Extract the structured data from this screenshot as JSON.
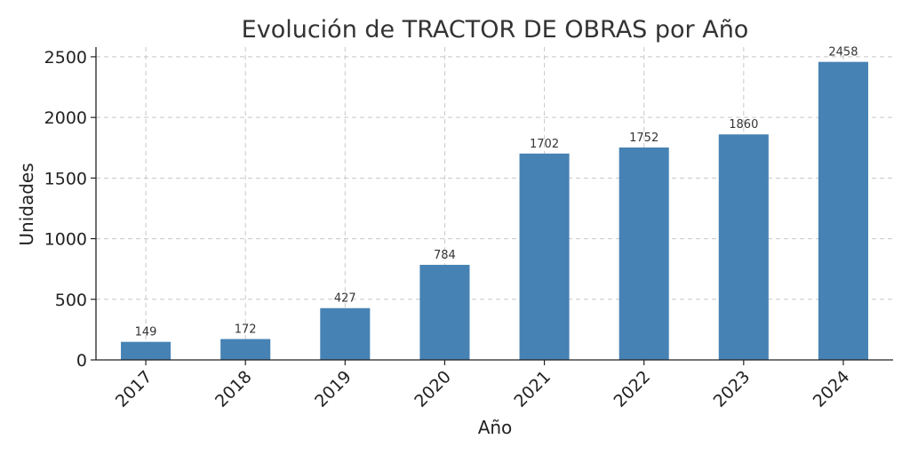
{
  "chart_data": {
    "type": "bar",
    "title": "Evolución de TRACTOR DE OBRAS por Año",
    "xlabel": "Año",
    "ylabel": "Unidades",
    "categories": [
      "2017",
      "2018",
      "2019",
      "2020",
      "2021",
      "2022",
      "2023",
      "2024"
    ],
    "values": [
      149,
      172,
      427,
      784,
      1702,
      1752,
      1860,
      2458
    ],
    "ylim": [
      0,
      2580
    ],
    "yticks": [
      0,
      500,
      1000,
      1500,
      2000,
      2500
    ],
    "grid": true,
    "legend": "none",
    "bar_color": "#4682b4"
  }
}
